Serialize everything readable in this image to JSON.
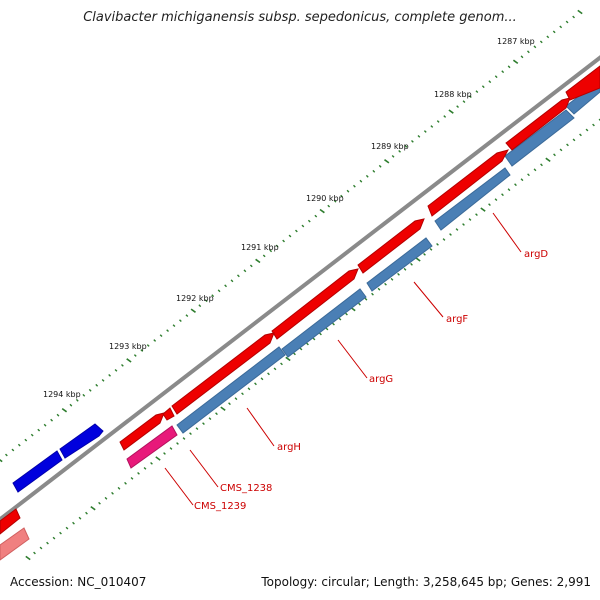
{
  "title": "Clavibacter michiganensis subsp. sepedonicus, complete genom...",
  "footer": {
    "accession": "Accession: NC_010407",
    "summary": "Topology: circular; Length: 3,258,645 bp; Genes: 2,991"
  },
  "ticks": [
    "1287 kbp",
    "1288 kbp",
    "1289 kbp",
    "1290 kbp",
    "1291 kbp",
    "1292 kbp",
    "1293 kbp",
    "1294 kbp"
  ],
  "gene_labels": [
    "argD",
    "argF",
    "argG",
    "argH",
    "CMS_1238",
    "CMS_1239"
  ],
  "colors": {
    "backbone": "#888888",
    "forward_gene": "#ee0000",
    "reverse_gene": "#4a7fb5",
    "other_gene": "#0000dd",
    "pink_gene": "#e8197a",
    "tick_dots": "#2e7d2e",
    "label": "#cc0000"
  }
}
